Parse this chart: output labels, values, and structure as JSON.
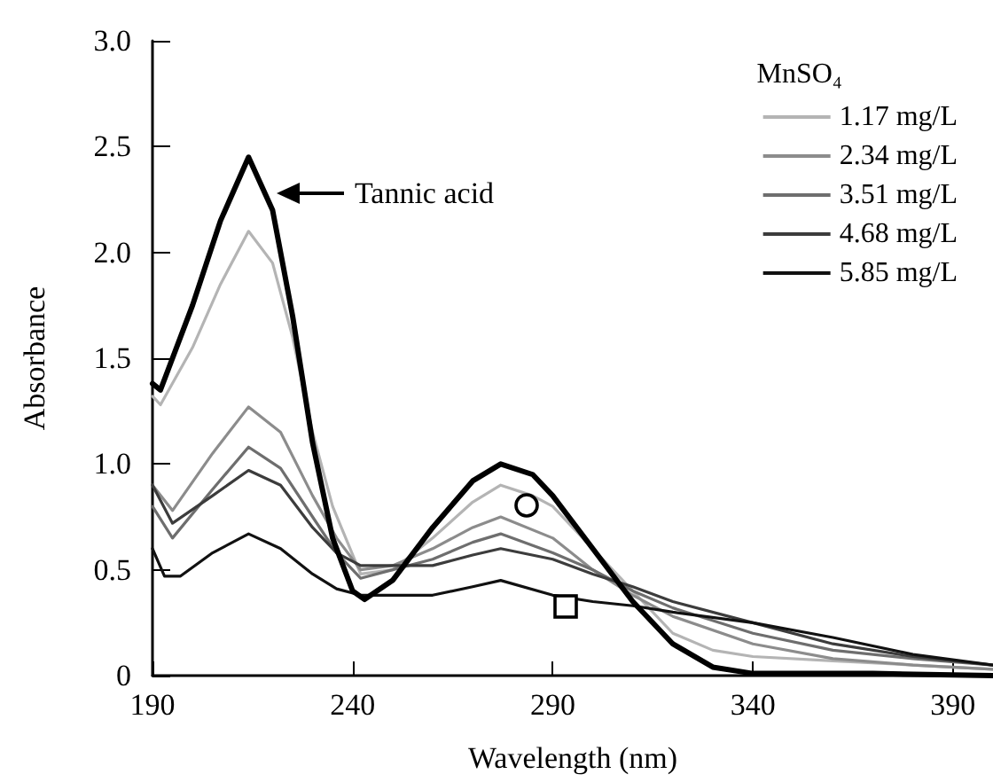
{
  "chart_data": {
    "type": "line",
    "xlabel": "Wavelength (nm)",
    "ylabel": "Absorbance",
    "legend_title": "MnSO₄",
    "xlim": [
      190,
      400
    ],
    "xticks": [
      190,
      240,
      290,
      340,
      390
    ],
    "ylim": [
      0,
      3
    ],
    "yticks": [
      0,
      0.5,
      {
        "value": 1,
        "label": "1.0"
      },
      1.5,
      {
        "value": 2,
        "label": "2.0"
      },
      2.5,
      {
        "value": 3,
        "label": "3.0"
      }
    ],
    "legend": "top right",
    "grid": false,
    "marker": "none",
    "line_style": "solid",
    "annotations": [
      {
        "text": "Tannic acid",
        "x": 221,
        "y": 2.28
      }
    ],
    "series": [
      {
        "color": "#000000",
        "x": [
          190,
          192,
          200,
          207,
          214,
          220,
          225,
          230,
          235,
          240,
          243,
          250,
          260,
          270,
          277,
          285,
          290,
          300,
          310,
          320,
          330,
          340,
          370,
          400
        ],
        "values": [
          1.38,
          1.35,
          1.75,
          2.15,
          2.45,
          2.2,
          1.7,
          1.1,
          0.65,
          0.4,
          0.36,
          0.45,
          0.7,
          0.92,
          1.0,
          0.95,
          0.85,
          0.6,
          0.35,
          0.15,
          0.04,
          0.01,
          0.01,
          0
        ]
      },
      {
        "name": "1.17 mg/L",
        "color": "#b4b4b4",
        "x": [
          190,
          192,
          200,
          207,
          214,
          220,
          225,
          230,
          235,
          242,
          250,
          260,
          270,
          277,
          285,
          290,
          300,
          310,
          320,
          330,
          340,
          360,
          380,
          400
        ],
        "values": [
          1.32,
          1.28,
          1.55,
          1.85,
          2.1,
          1.95,
          1.6,
          1.15,
          0.8,
          0.48,
          0.5,
          0.65,
          0.82,
          0.9,
          0.85,
          0.8,
          0.6,
          0.4,
          0.2,
          0.12,
          0.09,
          0.07,
          0.05,
          0.03
        ]
      },
      {
        "name": "2.34 mg/L",
        "color": "#8c8c8c",
        "x": [
          190,
          195,
          205,
          214,
          222,
          230,
          236,
          242,
          250,
          260,
          270,
          277,
          290,
          300,
          310,
          320,
          340,
          360,
          380,
          400
        ],
        "values": [
          0.9,
          0.78,
          1.05,
          1.27,
          1.15,
          0.85,
          0.65,
          0.5,
          0.52,
          0.6,
          0.7,
          0.75,
          0.65,
          0.5,
          0.38,
          0.28,
          0.15,
          0.08,
          0.05,
          0.03
        ]
      },
      {
        "name": "3.51 mg/L",
        "color": "#6e6e6e",
        "x": [
          190,
          195,
          205,
          214,
          222,
          230,
          236,
          242,
          250,
          260,
          270,
          277,
          290,
          300,
          310,
          320,
          340,
          360,
          380,
          400
        ],
        "values": [
          0.8,
          0.65,
          0.88,
          1.08,
          0.98,
          0.75,
          0.58,
          0.46,
          0.5,
          0.55,
          0.63,
          0.67,
          0.58,
          0.5,
          0.4,
          0.32,
          0.2,
          0.12,
          0.08,
          0.05
        ]
      },
      {
        "name": "4.68 mg/L",
        "color": "#3c3c3c",
        "x": [
          190,
          195,
          205,
          214,
          222,
          230,
          236,
          242,
          250,
          260,
          270,
          277,
          290,
          300,
          310,
          320,
          340,
          360,
          380,
          400
        ],
        "values": [
          0.9,
          0.72,
          0.85,
          0.97,
          0.9,
          0.7,
          0.58,
          0.52,
          0.52,
          0.52,
          0.57,
          0.6,
          0.55,
          0.48,
          0.42,
          0.35,
          0.25,
          0.15,
          0.09,
          0.05
        ]
      },
      {
        "name": "5.85 mg/L",
        "color": "#111111",
        "x": [
          190,
          193,
          197,
          205,
          214,
          222,
          230,
          236,
          242,
          250,
          260,
          270,
          277,
          290,
          300,
          310,
          320,
          340,
          360,
          380,
          400
        ],
        "values": [
          0.6,
          0.47,
          0.47,
          0.58,
          0.67,
          0.6,
          0.48,
          0.41,
          0.38,
          0.38,
          0.38,
          0.42,
          0.45,
          0.38,
          0.35,
          0.33,
          0.3,
          0.25,
          0.18,
          0.1,
          0.05
        ]
      }
    ]
  }
}
